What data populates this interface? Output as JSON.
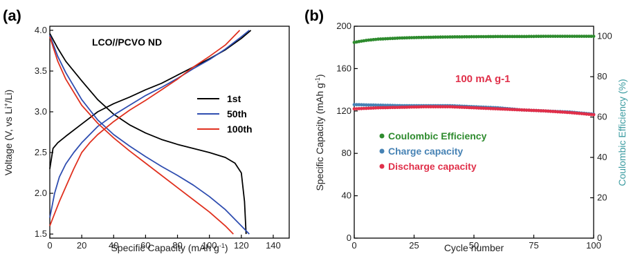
{
  "panel_a": {
    "label": "(a)"
  },
  "panel_b": {
    "label": "(b)"
  },
  "chart_data": [
    {
      "type": "line",
      "panel": "(a)",
      "title": "LCO//PCVO ND",
      "xlabel": "Specific Capacity (mAh g-1)",
      "ylabel": "Voltage (V, vs Li+/Li)",
      "xlim": [
        0,
        150
      ],
      "ylim": [
        1.45,
        4.05
      ],
      "xticks": [
        "0",
        "20",
        "40",
        "60",
        "80",
        "100",
        "120",
        "140"
      ],
      "yticks": [
        "1.5",
        "2.0",
        "2.5",
        "3.0",
        "3.5",
        "4.0"
      ],
      "legend_position": "right",
      "series": [
        {
          "name": "1st",
          "color": "#000000",
          "charge": [
            [
              0,
              2.3
            ],
            [
              2,
              2.55
            ],
            [
              5,
              2.62
            ],
            [
              10,
              2.7
            ],
            [
              20,
              2.85
            ],
            [
              30,
              3.0
            ],
            [
              40,
              3.1
            ],
            [
              50,
              3.18
            ],
            [
              60,
              3.27
            ],
            [
              70,
              3.35
            ],
            [
              80,
              3.45
            ],
            [
              90,
              3.55
            ],
            [
              100,
              3.65
            ],
            [
              110,
              3.76
            ],
            [
              120,
              3.9
            ],
            [
              126,
              4.0
            ]
          ],
          "discharge": [
            [
              0,
              3.96
            ],
            [
              5,
              3.78
            ],
            [
              10,
              3.62
            ],
            [
              20,
              3.38
            ],
            [
              30,
              3.15
            ],
            [
              40,
              2.97
            ],
            [
              50,
              2.84
            ],
            [
              60,
              2.74
            ],
            [
              70,
              2.66
            ],
            [
              80,
              2.6
            ],
            [
              90,
              2.55
            ],
            [
              100,
              2.5
            ],
            [
              110,
              2.44
            ],
            [
              116,
              2.37
            ],
            [
              120,
              2.25
            ],
            [
              122,
              1.9
            ],
            [
              123,
              1.5
            ]
          ]
        },
        {
          "name": "50th",
          "color": "#2E4DB0",
          "charge": [
            [
              0,
              1.7
            ],
            [
              3,
              2.0
            ],
            [
              6,
              2.2
            ],
            [
              10,
              2.36
            ],
            [
              15,
              2.5
            ],
            [
              20,
              2.62
            ],
            [
              30,
              2.82
            ],
            [
              40,
              2.96
            ],
            [
              50,
              3.08
            ],
            [
              60,
              3.2
            ],
            [
              70,
              3.3
            ],
            [
              80,
              3.41
            ],
            [
              90,
              3.53
            ],
            [
              100,
              3.64
            ],
            [
              110,
              3.77
            ],
            [
              120,
              3.92
            ],
            [
              125,
              4.0
            ]
          ],
          "discharge": [
            [
              0,
              3.94
            ],
            [
              5,
              3.68
            ],
            [
              10,
              3.48
            ],
            [
              20,
              3.15
            ],
            [
              30,
              2.9
            ],
            [
              40,
              2.72
            ],
            [
              50,
              2.58
            ],
            [
              60,
              2.45
            ],
            [
              70,
              2.33
            ],
            [
              80,
              2.22
            ],
            [
              90,
              2.1
            ],
            [
              100,
              1.96
            ],
            [
              110,
              1.8
            ],
            [
              120,
              1.6
            ],
            [
              125,
              1.5
            ]
          ]
        },
        {
          "name": "100th",
          "color": "#E0301E",
          "charge": [
            [
              0,
              1.6
            ],
            [
              3,
              1.75
            ],
            [
              6,
              1.9
            ],
            [
              10,
              2.08
            ],
            [
              15,
              2.3
            ],
            [
              20,
              2.5
            ],
            [
              25,
              2.62
            ],
            [
              30,
              2.72
            ],
            [
              40,
              2.88
            ],
            [
              50,
              3.02
            ],
            [
              60,
              3.14
            ],
            [
              70,
              3.27
            ],
            [
              80,
              3.4
            ],
            [
              90,
              3.55
            ],
            [
              100,
              3.68
            ],
            [
              110,
              3.82
            ],
            [
              119,
              4.0
            ]
          ],
          "discharge": [
            [
              0,
              3.92
            ],
            [
              5,
              3.62
            ],
            [
              10,
              3.4
            ],
            [
              20,
              3.08
            ],
            [
              30,
              2.86
            ],
            [
              40,
              2.68
            ],
            [
              50,
              2.52
            ],
            [
              60,
              2.37
            ],
            [
              70,
              2.22
            ],
            [
              80,
              2.07
            ],
            [
              90,
              1.92
            ],
            [
              100,
              1.77
            ],
            [
              110,
              1.6
            ],
            [
              115,
              1.5
            ]
          ]
        }
      ]
    },
    {
      "type": "scatter",
      "panel": "(b)",
      "annotation": "100 mA g-1",
      "xlabel": "Cycle number",
      "ylabel_left": "Specific Capacity (mAh g-1)",
      "ylabel_right": "Coulombic Efficiency (%)",
      "xlim": [
        0,
        100
      ],
      "ylim_left": [
        0,
        200
      ],
      "ylim_right": [
        0,
        105
      ],
      "xticks": [
        "0",
        "25",
        "50",
        "75",
        "100"
      ],
      "yticks_left": [
        "0",
        "40",
        "80",
        "120",
        "160",
        "200"
      ],
      "yticks_right": [
        "0",
        "20",
        "40",
        "60",
        "80",
        "100"
      ],
      "legend_position": "left-center",
      "series": [
        {
          "name": "Coulombic Efficiency",
          "axis": "right",
          "color": "#2E8B2E",
          "points": [
            [
              0,
              97
            ],
            [
              5,
              98
            ],
            [
              10,
              98.6
            ],
            [
              20,
              99.2
            ],
            [
              30,
              99.5
            ],
            [
              40,
              99.7
            ],
            [
              50,
              99.8
            ],
            [
              60,
              99.9
            ],
            [
              70,
              99.9
            ],
            [
              80,
              100
            ],
            [
              90,
              100
            ],
            [
              100,
              100
            ]
          ]
        },
        {
          "name": "Charge capacity",
          "axis": "left",
          "color": "#4682B4",
          "points": [
            [
              0,
              126
            ],
            [
              10,
              125.5
            ],
            [
              20,
              125
            ],
            [
              30,
              125
            ],
            [
              40,
              125
            ],
            [
              50,
              124
            ],
            [
              60,
              123
            ],
            [
              70,
              121
            ],
            [
              80,
              120
            ],
            [
              90,
              119
            ],
            [
              100,
              117
            ]
          ]
        },
        {
          "name": "Discharge capacity",
          "axis": "left",
          "color": "#E0304A",
          "points": [
            [
              0,
              122
            ],
            [
              10,
              123
            ],
            [
              20,
              123.5
            ],
            [
              30,
              124
            ],
            [
              40,
              124
            ],
            [
              50,
              123
            ],
            [
              60,
              122
            ],
            [
              70,
              121
            ],
            [
              80,
              120
            ],
            [
              90,
              118.5
            ],
            [
              100,
              116.5
            ]
          ]
        }
      ]
    }
  ]
}
